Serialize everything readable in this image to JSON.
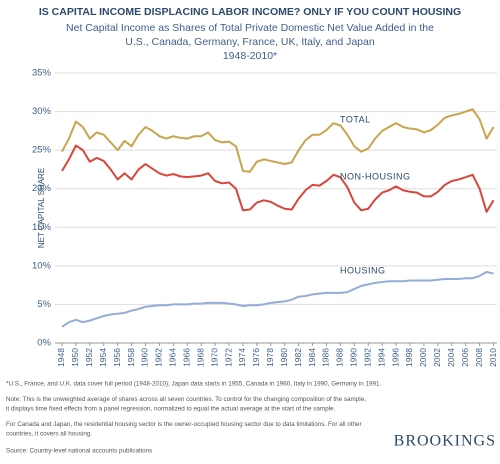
{
  "chart_data": {
    "type": "line",
    "title": "IS CAPITAL INCOME DISPLACING LABOR INCOME? ONLY IF YOU COUNT HOUSING",
    "subtitle": [
      "Net Capital Income as Shares of Total Private Domestic Net Value Added in the",
      "U.S., Canada, Germany, France, UK, Italy, and Japan",
      "1948-2010*"
    ],
    "y_label": "NET CAPITAL SHARE",
    "x": [
      1948,
      1949,
      1950,
      1951,
      1952,
      1953,
      1954,
      1955,
      1956,
      1957,
      1958,
      1959,
      1960,
      1961,
      1962,
      1963,
      1964,
      1965,
      1966,
      1967,
      1968,
      1969,
      1970,
      1971,
      1972,
      1973,
      1974,
      1975,
      1976,
      1977,
      1978,
      1979,
      1980,
      1981,
      1982,
      1983,
      1984,
      1985,
      1986,
      1987,
      1988,
      1989,
      1990,
      1991,
      1992,
      1993,
      1994,
      1995,
      1996,
      1997,
      1998,
      1999,
      2000,
      2001,
      2002,
      2003,
      2004,
      2005,
      2006,
      2007,
      2008,
      2009,
      2010
    ],
    "series": [
      {
        "name": "TOTAL",
        "color": "#c9a44c",
        "values": [
          24.8,
          26.5,
          28.7,
          28.0,
          26.5,
          27.3,
          27.0,
          26.0,
          25.0,
          26.2,
          25.5,
          27.0,
          28.0,
          27.5,
          26.8,
          26.5,
          26.8,
          26.6,
          26.5,
          26.8,
          26.8,
          27.3,
          26.3,
          26.0,
          26.1,
          25.5,
          22.3,
          22.2,
          23.5,
          23.8,
          23.6,
          23.4,
          23.2,
          23.4,
          25.0,
          26.3,
          27.0,
          27.0,
          27.6,
          28.5,
          28.2,
          27.0,
          25.5,
          24.8,
          25.2,
          26.5,
          27.5,
          28.0,
          28.5,
          28.0,
          27.8,
          27.7,
          27.3,
          27.6,
          28.3,
          29.2,
          29.5,
          29.7,
          30.0,
          30.3,
          29.0,
          26.5,
          28.0
        ]
      },
      {
        "name": "NON-HOUSING",
        "color": "#d8463b",
        "values": [
          22.3,
          23.8,
          25.6,
          25.0,
          23.5,
          24.0,
          23.6,
          22.5,
          21.2,
          22.0,
          21.2,
          22.5,
          23.2,
          22.6,
          22.0,
          21.7,
          21.9,
          21.6,
          21.5,
          21.6,
          21.7,
          22.0,
          21.0,
          20.7,
          20.8,
          20.0,
          17.2,
          17.3,
          18.2,
          18.5,
          18.3,
          17.8,
          17.4,
          17.3,
          18.7,
          19.8,
          20.5,
          20.4,
          21.0,
          21.8,
          21.5,
          20.2,
          18.2,
          17.2,
          17.4,
          18.6,
          19.5,
          19.8,
          20.3,
          19.8,
          19.6,
          19.5,
          19.0,
          19.0,
          19.6,
          20.5,
          21.0,
          21.2,
          21.5,
          21.8,
          20.0,
          17.0,
          18.5
        ]
      },
      {
        "name": "HOUSING",
        "color": "#94acd8",
        "values": [
          2.1,
          2.7,
          3.0,
          2.7,
          2.9,
          3.2,
          3.5,
          3.7,
          3.8,
          3.9,
          4.2,
          4.4,
          4.7,
          4.8,
          4.9,
          4.9,
          5.0,
          5.0,
          5.0,
          5.1,
          5.1,
          5.2,
          5.2,
          5.2,
          5.1,
          5.0,
          4.8,
          4.9,
          4.9,
          5.0,
          5.2,
          5.3,
          5.4,
          5.6,
          6.0,
          6.1,
          6.3,
          6.4,
          6.5,
          6.5,
          6.5,
          6.6,
          7.0,
          7.4,
          7.6,
          7.8,
          7.9,
          8.0,
          8.0,
          8.0,
          8.1,
          8.1,
          8.1,
          8.1,
          8.2,
          8.3,
          8.3,
          8.3,
          8.4,
          8.4,
          8.7,
          9.2,
          9.0
        ]
      }
    ],
    "xlim": [
      1947,
      2010.5
    ],
    "xticks": [
      1948,
      1950,
      1952,
      1954,
      1956,
      1958,
      1960,
      1962,
      1964,
      1966,
      1968,
      1970,
      1972,
      1974,
      1976,
      1978,
      1980,
      1982,
      1984,
      1986,
      1988,
      1990,
      1992,
      1994,
      1996,
      1998,
      2000,
      2002,
      2004,
      2006,
      2008,
      2010
    ],
    "ylim": [
      0,
      35
    ],
    "yticks": [
      {
        "value": 0,
        "label": "0%"
      },
      {
        "value": 5,
        "label": "5%"
      },
      {
        "value": 10,
        "label": "10%"
      },
      {
        "value": 15,
        "label": "15%"
      },
      {
        "value": 20,
        "label": "20%"
      },
      {
        "value": 25,
        "label": "25%"
      },
      {
        "value": 30,
        "label": "30%"
      },
      {
        "value": 35,
        "label": "35%"
      }
    ],
    "grid": true,
    "notes": [
      [
        "*U.S., France, and U.K. data cover full period (1948-2010); Japan data starts in 1955, Canada in 1960, Italy in 1990, Germany in 1991."
      ],
      [
        "Note: This is the unweighted average of shares across all seven countries. To control for the changing composition of the sample,",
        "it displays time fixed effects from a panel regression, normalized to equal the actual average at the start of the sample."
      ],
      [
        "For Canada and Japan, the residential housing sector is the owner-occupied housing sector due to data limitations. For all other",
        "countries, it covers all housing."
      ]
    ],
    "source": "Source: Country-level national accounts publications",
    "logo": "BROOKINGS"
  }
}
